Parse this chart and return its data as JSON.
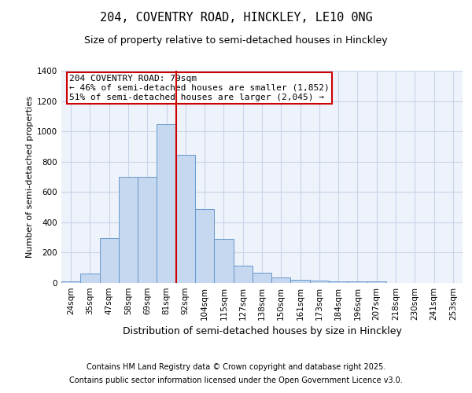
{
  "title1": "204, COVENTRY ROAD, HINCKLEY, LE10 0NG",
  "title2": "Size of property relative to semi-detached houses in Hinckley",
  "xlabel": "Distribution of semi-detached houses by size in Hinckley",
  "ylabel": "Number of semi-detached properties",
  "bar_labels": [
    "24sqm",
    "35sqm",
    "47sqm",
    "58sqm",
    "69sqm",
    "81sqm",
    "92sqm",
    "104sqm",
    "115sqm",
    "127sqm",
    "138sqm",
    "150sqm",
    "161sqm",
    "173sqm",
    "184sqm",
    "196sqm",
    "207sqm",
    "218sqm",
    "230sqm",
    "241sqm",
    "253sqm"
  ],
  "bar_values": [
    10,
    60,
    295,
    700,
    700,
    1050,
    845,
    490,
    290,
    115,
    65,
    35,
    20,
    15,
    12,
    8,
    8,
    0,
    0,
    0,
    0
  ],
  "bar_color": "#c5d8f0",
  "bar_edge_color": "#6699cc",
  "red_line_index": 5,
  "annotation_text": "204 COVENTRY ROAD: 79sqm\n← 46% of semi-detached houses are smaller (1,852)\n51% of semi-detached houses are larger (2,045) →",
  "annotation_box_color": "#ffffff",
  "annotation_box_edge_color": "#cc0000",
  "ylim": [
    0,
    1400
  ],
  "yticks": [
    0,
    200,
    400,
    600,
    800,
    1000,
    1200,
    1400
  ],
  "footer1": "Contains HM Land Registry data © Crown copyright and database right 2025.",
  "footer2": "Contains public sector information licensed under the Open Government Licence v3.0.",
  "bg_color": "#eef2fb",
  "grid_color": "#c8d4e8",
  "title1_fontsize": 11,
  "title2_fontsize": 9,
  "ylabel_fontsize": 8,
  "xlabel_fontsize": 9,
  "tick_fontsize": 7.5,
  "footer_fontsize": 7,
  "ann_fontsize": 8
}
